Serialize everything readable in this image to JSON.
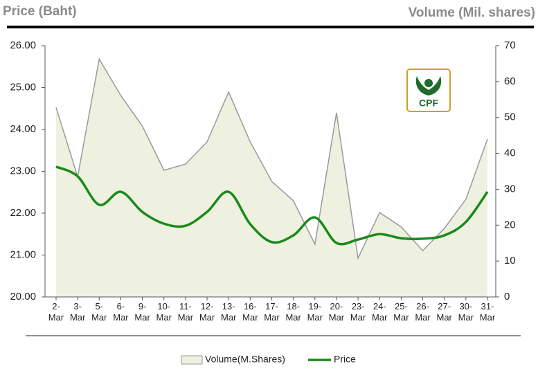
{
  "chart_data": {
    "type": "line",
    "y_axis_title": "Price (Baht)",
    "y2_axis_title": "Volume (Mil. shares)",
    "logo_text": "CPF",
    "categories": [
      "2-Mar",
      "3-Mar",
      "5-Mar",
      "6-Mar",
      "9-Mar",
      "10-Mar",
      "11-Mar",
      "12-Mar",
      "13-Mar",
      "16-Mar",
      "17-Mar",
      "18-Mar",
      "19-Mar",
      "20-Mar",
      "23-Mar",
      "24-Mar",
      "25-Mar",
      "26-Mar",
      "27-Mar",
      "30-Mar",
      "31-Mar"
    ],
    "series": [
      {
        "name": "Volume(M.Shares)",
        "type": "area",
        "axis": "y2",
        "color": "#eef0e0",
        "line_color": "#9a9a9a",
        "values": [
          52.8,
          33.5,
          66.3,
          56.1,
          47.6,
          35.3,
          37.0,
          43.2,
          57.1,
          43.2,
          32.2,
          26.8,
          14.7,
          51.3,
          10.8,
          23.5,
          19.5,
          12.9,
          19.1,
          27.2,
          44.0
        ]
      },
      {
        "name": "Price",
        "type": "line",
        "color": "#1a8a1a",
        "values": [
          23.11,
          22.88,
          22.2,
          22.51,
          22.03,
          21.75,
          21.7,
          22.03,
          22.51,
          21.74,
          21.31,
          21.47,
          21.9,
          21.29,
          21.37,
          21.5,
          21.4,
          21.39,
          21.47,
          21.79,
          22.51
        ]
      }
    ],
    "ylim": [
      20,
      26
    ],
    "yticks": [
      {
        "value": 20,
        "label": "20.00"
      },
      {
        "value": 21,
        "label": "21.00"
      },
      {
        "value": 22,
        "label": "22.00"
      },
      {
        "value": 23,
        "label": "23.00"
      },
      {
        "value": 24,
        "label": "24.00"
      },
      {
        "value": 25,
        "label": "25.00"
      },
      {
        "value": 26,
        "label": "26.00"
      }
    ],
    "y2lim": [
      0,
      70
    ],
    "y2ticks": [
      0,
      10,
      20,
      30,
      40,
      50,
      60,
      70
    ],
    "grid": false,
    "legend": "bottom"
  }
}
